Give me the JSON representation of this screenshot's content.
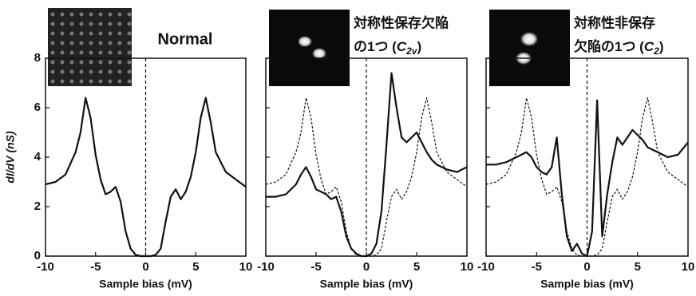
{
  "chart_data": [
    {
      "type": "line",
      "title": "Normal",
      "ylabel": "dI/dV (nS)",
      "xlabel": "Sample bias (mV)",
      "xlim": [
        -10,
        10
      ],
      "ylim": [
        0,
        8
      ],
      "xticks": [
        -10,
        -5,
        0,
        5,
        10
      ],
      "yticks": [
        0,
        2,
        4,
        6,
        8
      ],
      "x": [
        -10,
        -9,
        -8,
        -7,
        -6.5,
        -6,
        -5.5,
        -5,
        -4.5,
        -4,
        -3.5,
        -3,
        -2.5,
        -2,
        -1.5,
        -1,
        -0.5,
        0,
        0.5,
        1,
        1.5,
        2,
        2.5,
        3,
        3.5,
        4,
        4.5,
        5,
        5.5,
        6,
        6.5,
        7,
        8,
        9,
        10
      ],
      "series": [
        {
          "color": "#111111",
          "style": "solid",
          "values": [
            2.9,
            3.0,
            3.3,
            4.2,
            5.0,
            6.4,
            5.6,
            4.1,
            3.1,
            2.5,
            2.6,
            2.8,
            2.2,
            1.0,
            0.3,
            0.05,
            0,
            0,
            0,
            0.05,
            0.3,
            1.4,
            2.4,
            2.7,
            2.3,
            2.6,
            3.2,
            4.2,
            5.6,
            6.4,
            5.4,
            4.2,
            3.4,
            3.1,
            2.8
          ]
        }
      ]
    },
    {
      "type": "line",
      "title_line1": "対称性保存欠陥",
      "title_line2": "の1つ (",
      "title_symbol": "C",
      "title_subscript": "2v",
      "title_close": ")",
      "xlabel": "Sample bias (mV)",
      "xlim": [
        -10,
        10
      ],
      "ylim": [
        0,
        8
      ],
      "xticks": [
        -10,
        -5,
        0,
        5,
        10
      ],
      "x": [
        -10,
        -9,
        -8,
        -7,
        -6.5,
        -6,
        -5.5,
        -5,
        -4.5,
        -4,
        -3.5,
        -3,
        -2.5,
        -2,
        -1.5,
        -1,
        -0.5,
        0,
        0.5,
        1,
        1.5,
        2,
        2.5,
        3,
        3.5,
        4,
        4.5,
        5,
        5.5,
        6,
        6.5,
        7,
        8,
        9,
        10
      ],
      "series": [
        {
          "color": "#111111",
          "style": "dashed",
          "values": [
            2.9,
            3.0,
            3.3,
            4.2,
            5.0,
            6.4,
            5.6,
            4.1,
            3.1,
            2.5,
            2.6,
            2.8,
            2.2,
            1.0,
            0.3,
            0.05,
            0,
            0,
            0,
            0.05,
            0.3,
            1.4,
            2.4,
            2.7,
            2.3,
            2.6,
            3.2,
            4.2,
            5.6,
            6.4,
            5.4,
            4.2,
            3.4,
            3.1,
            2.8
          ]
        },
        {
          "color": "#111111",
          "style": "solid",
          "values": [
            2.4,
            2.4,
            2.5,
            2.9,
            3.3,
            3.6,
            3.2,
            2.7,
            2.6,
            2.5,
            2.3,
            2.4,
            1.8,
            0.8,
            0.3,
            0.1,
            0,
            0,
            0.1,
            0.5,
            1.8,
            4.5,
            7.4,
            6.0,
            4.8,
            4.6,
            4.8,
            5.0,
            4.6,
            4.2,
            3.9,
            3.7,
            3.5,
            3.4,
            3.6
          ]
        }
      ]
    },
    {
      "type": "line",
      "title_line1": "対称性非保存",
      "title_line2": "欠陥の1つ (",
      "title_symbol": "C",
      "title_subscript": "2",
      "title_close": ")",
      "xlabel": "Sample bias (mV)",
      "xlim": [
        -10,
        10
      ],
      "ylim": [
        0,
        8
      ],
      "xticks": [
        -10,
        -5,
        0,
        5,
        10
      ],
      "x": [
        -10,
        -9,
        -8,
        -7,
        -6.5,
        -6,
        -5.5,
        -5,
        -4.5,
        -4,
        -3.5,
        -3,
        -2.5,
        -2,
        -1.5,
        -1,
        -0.5,
        0,
        0.5,
        1,
        1.5,
        2,
        2.5,
        3,
        3.5,
        4,
        4.5,
        5,
        5.5,
        6,
        6.5,
        7,
        8,
        9,
        10
      ],
      "series": [
        {
          "color": "#111111",
          "style": "dashed",
          "values": [
            2.9,
            3.0,
            3.3,
            4.2,
            5.0,
            6.4,
            5.6,
            4.1,
            3.1,
            2.5,
            2.6,
            2.8,
            2.2,
            1.0,
            0.3,
            0.05,
            0,
            0,
            0,
            0.05,
            0.3,
            1.4,
            2.4,
            2.7,
            2.3,
            2.6,
            3.2,
            4.2,
            5.6,
            6.4,
            5.4,
            4.2,
            3.4,
            3.1,
            2.8
          ]
        },
        {
          "color": "#111111",
          "style": "solid",
          "values": [
            3.7,
            3.7,
            3.8,
            4.0,
            4.1,
            4.2,
            4.0,
            3.6,
            3.4,
            3.3,
            3.6,
            4.8,
            2.5,
            0.8,
            0.2,
            0.5,
            0.1,
            0,
            1.0,
            6.3,
            0.8,
            2.5,
            3.8,
            4.8,
            4.5,
            4.8,
            5.1,
            4.9,
            4.7,
            4.4,
            4.3,
            4.2,
            4.0,
            4.1,
            4.6
          ]
        }
      ]
    }
  ]
}
